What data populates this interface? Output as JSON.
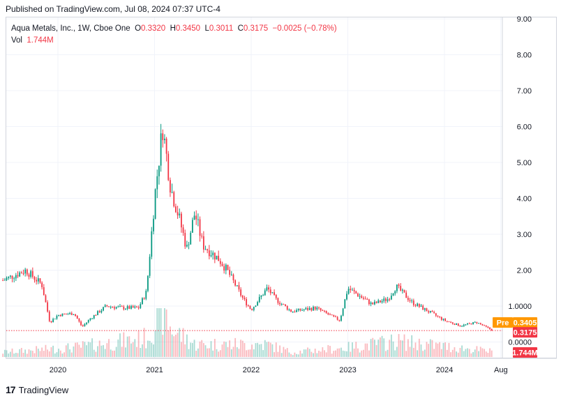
{
  "published": "Published on TradingView.com, Jul 08, 2024 07:37 UTC-4",
  "legend": {
    "symbol": "Aqua Metals, Inc., 1W, Cboe One",
    "o_label": "O",
    "o": "0.3320",
    "h_label": "H",
    "h": "0.3450",
    "l_label": "L",
    "l": "0.3011",
    "c_label": "C",
    "c": "0.3175",
    "change": "−0.0025 (−0.78%)",
    "vol_label": "Vol",
    "vol": "1.744M"
  },
  "badges": {
    "pre_label": "Pre",
    "pre_value": "0.3405",
    "close_value": "0.3175",
    "vol_value": "1.744M"
  },
  "footer": {
    "brand": "TradingView"
  },
  "colors": {
    "up": "#089981",
    "down": "#f23645",
    "pre": "#ff9800",
    "grid": "#f0f3fa"
  },
  "chart_data": {
    "type": "candlestick",
    "title": "",
    "y_ticks": [
      "9.00",
      "8.00",
      "7.00",
      "6.00",
      "5.00",
      "4.00",
      "3.00",
      "2.00",
      "1.0000",
      "0.0000"
    ],
    "y_tick_values": [
      9,
      8,
      7,
      6,
      5,
      4,
      3,
      2,
      1,
      0
    ],
    "x_ticks": [
      "2020",
      "2021",
      "2022",
      "2023",
      "2024",
      "Aug"
    ],
    "ylim": [
      -0.45,
      9
    ],
    "last_close": 0.3175,
    "pre_market": 0.3405,
    "price_path": [
      {
        "date": "2019-06",
        "close": 1.7
      },
      {
        "date": "2019-08",
        "close": 1.9
      },
      {
        "date": "2019-09",
        "close": 2.0
      },
      {
        "date": "2019-11",
        "close": 1.6
      },
      {
        "date": "2019-12",
        "close": 0.55
      },
      {
        "date": "2020-01",
        "close": 0.75
      },
      {
        "date": "2020-03",
        "close": 0.8
      },
      {
        "date": "2020-04",
        "close": 0.42
      },
      {
        "date": "2020-05",
        "close": 0.65
      },
      {
        "date": "2020-07",
        "close": 1.0
      },
      {
        "date": "2020-09",
        "close": 0.95
      },
      {
        "date": "2020-11",
        "close": 0.95
      },
      {
        "date": "2020-12",
        "close": 1.4
      },
      {
        "date": "2021-01",
        "close": 4.0
      },
      {
        "date": "2021-02",
        "close": 6.0
      },
      {
        "date": "2021-03",
        "close": 4.3
      },
      {
        "date": "2021-04",
        "close": 3.5
      },
      {
        "date": "2021-05",
        "close": 2.6
      },
      {
        "date": "2021-06",
        "close": 3.6
      },
      {
        "date": "2021-07",
        "close": 2.7
      },
      {
        "date": "2021-09",
        "close": 2.3
      },
      {
        "date": "2021-10",
        "close": 2.0
      },
      {
        "date": "2021-12",
        "close": 1.2
      },
      {
        "date": "2022-01",
        "close": 0.9
      },
      {
        "date": "2022-03",
        "close": 1.5
      },
      {
        "date": "2022-04",
        "close": 1.2
      },
      {
        "date": "2022-06",
        "close": 0.85
      },
      {
        "date": "2022-09",
        "close": 0.95
      },
      {
        "date": "2022-12",
        "close": 0.6
      },
      {
        "date": "2023-01",
        "close": 1.5
      },
      {
        "date": "2023-04",
        "close": 1.05
      },
      {
        "date": "2023-06",
        "close": 1.2
      },
      {
        "date": "2023-07",
        "close": 1.55
      },
      {
        "date": "2023-09",
        "close": 1.1
      },
      {
        "date": "2023-11",
        "close": 0.85
      },
      {
        "date": "2024-01",
        "close": 0.6
      },
      {
        "date": "2024-03",
        "close": 0.45
      },
      {
        "date": "2024-05",
        "close": 0.55
      },
      {
        "date": "2024-07",
        "close": 0.3175
      }
    ],
    "volume_path_millions": [
      {
        "date": "2019-06",
        "vol": 1.5
      },
      {
        "date": "2020-03",
        "vol": 3.0
      },
      {
        "date": "2020-12",
        "vol": 6.0
      },
      {
        "date": "2021-02",
        "vol": 15.0
      },
      {
        "date": "2021-03",
        "vol": 9.0
      },
      {
        "date": "2021-06",
        "vol": 4.0
      },
      {
        "date": "2022-03",
        "vol": 4.0
      },
      {
        "date": "2022-06",
        "vol": 1.5
      },
      {
        "date": "2023-01",
        "vol": 3.0
      },
      {
        "date": "2023-07",
        "vol": 5.0
      },
      {
        "date": "2024-07",
        "vol": 1.744
      }
    ]
  }
}
